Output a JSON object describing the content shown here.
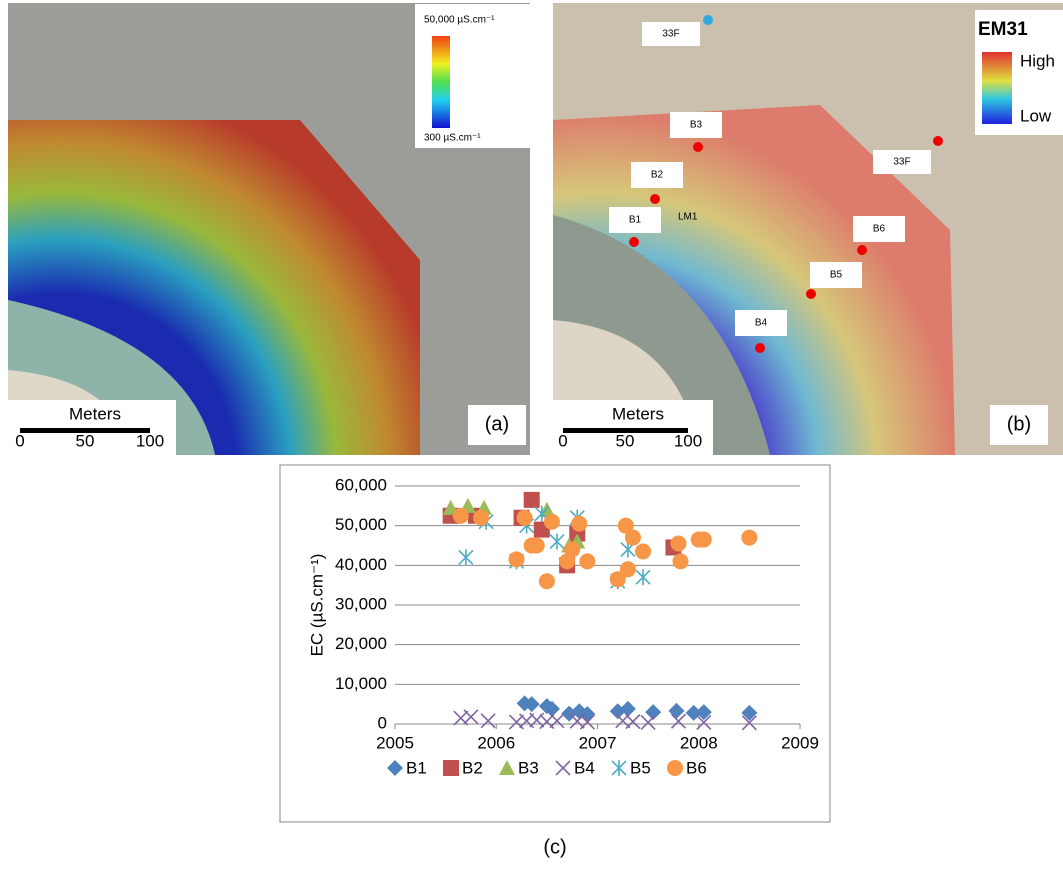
{
  "panel_a": {
    "legend_max": "50,000 µS.cm⁻¹",
    "legend_min": "300 µS.cm⁻¹",
    "scale_title": "Meters",
    "scale_labels": [
      "0",
      "50",
      "100"
    ],
    "label": "(a)"
  },
  "panel_b": {
    "legend_title": "EM31",
    "legend_high": "High",
    "legend_low": "Low",
    "sites": [
      "33F",
      "33F",
      "B1",
      "B2",
      "B3",
      "B4",
      "B5",
      "B6",
      "LM1"
    ],
    "scale_title": "Meters",
    "scale_labels": [
      "0",
      "50",
      "100"
    ],
    "label": "(b)"
  },
  "chart_data": {
    "type": "scatter",
    "caption": "(c)",
    "y_label": "EC (µS.cm⁻¹)",
    "xlim": [
      2005,
      2009
    ],
    "xticks": [
      2005,
      2006,
      2007,
      2008,
      2009
    ],
    "ylim": [
      0,
      60000
    ],
    "yticks": [
      0,
      {
        "value": 10000,
        "label": "10,000"
      },
      {
        "value": 20000,
        "label": "20,000"
      },
      {
        "value": 30000,
        "label": "30,000"
      },
      {
        "value": 40000,
        "label": "40,000"
      },
      {
        "value": 50000,
        "label": "50,000"
      },
      {
        "value": 60000,
        "label": "60,000"
      }
    ],
    "grid": true,
    "legend": "bottom",
    "series": [
      {
        "name": "B1",
        "color": "#4f81bd",
        "marker": "diamond",
        "x": [
          2006.28,
          2006.35,
          2006.5,
          2006.55,
          2006.72,
          2006.82,
          2006.9,
          2007.2,
          2007.3,
          2007.55,
          2007.78,
          2007.95,
          2008.05,
          2008.5
        ],
        "values": [
          5200,
          5000,
          4500,
          3800,
          2600,
          3200,
          2500,
          3200,
          3800,
          3000,
          3300,
          2800,
          3000,
          2800
        ]
      },
      {
        "name": "B2",
        "color": "#c0504d",
        "marker": "square",
        "x": [
          2005.55,
          2005.8,
          2006.25,
          2006.35,
          2006.45,
          2006.7,
          2006.8,
          2007.75
        ],
        "values": [
          52500,
          52500,
          52000,
          56500,
          49000,
          40000,
          48000,
          44500
        ]
      },
      {
        "name": "B3",
        "color": "#9bbb59",
        "marker": "triangle",
        "x": [
          2005.55,
          2005.72,
          2005.88,
          2006.5,
          2006.72,
          2006.8
        ],
        "values": [
          54500,
          55000,
          54500,
          54000,
          45000,
          46000
        ]
      },
      {
        "name": "B4",
        "color": "#8064a2",
        "marker": "cross",
        "x": [
          2005.65,
          2005.75,
          2005.92,
          2006.2,
          2006.3,
          2006.4,
          2006.5,
          2006.6,
          2006.8,
          2006.9,
          2007.25,
          2007.35,
          2007.5,
          2007.8,
          2008.05,
          2008.5
        ],
        "values": [
          1500,
          1800,
          800,
          500,
          800,
          1000,
          600,
          800,
          700,
          500,
          800,
          600,
          400,
          700,
          400,
          300
        ]
      },
      {
        "name": "B5",
        "color": "#4bacc6",
        "marker": "asterisk",
        "x": [
          2005.7,
          2005.9,
          2006.2,
          2006.3,
          2006.45,
          2006.6,
          2006.8,
          2007.2,
          2007.3,
          2007.45
        ],
        "values": [
          42000,
          51000,
          41000,
          50000,
          53000,
          46000,
          52000,
          36000,
          44000,
          37000
        ]
      },
      {
        "name": "B6",
        "color": "#f79646",
        "marker": "circle",
        "x": [
          2005.65,
          2005.85,
          2006.2,
          2006.28,
          2006.35,
          2006.4,
          2006.5,
          2006.55,
          2006.7,
          2006.75,
          2006.82,
          2006.9,
          2007.2,
          2007.28,
          2007.3,
          2007.35,
          2007.45,
          2007.8,
          2007.82,
          2008.0,
          2008.05,
          2008.5
        ],
        "values": [
          52500,
          52000,
          41500,
          52000,
          45000,
          45000,
          36000,
          51000,
          41000,
          44000,
          50500,
          41000,
          36500,
          50000,
          39000,
          47000,
          43500,
          45500,
          41000,
          46500,
          46500,
          47000
        ]
      }
    ]
  }
}
